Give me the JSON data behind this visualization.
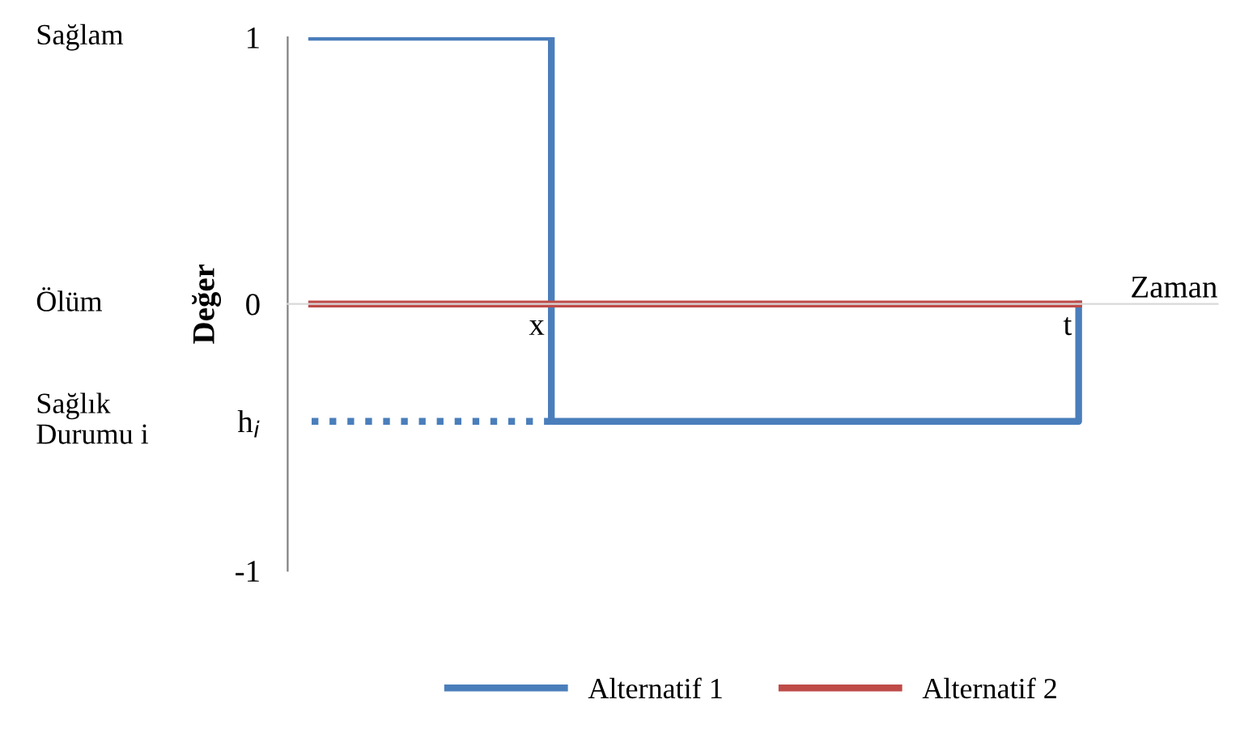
{
  "chart_data": {
    "type": "step",
    "ylabel": "Değer",
    "xlabel": "Zaman",
    "ylim": [
      -1,
      1
    ],
    "categories": [
      null,
      null,
      null,
      null,
      null,
      "x",
      null,
      null,
      null,
      null,
      null,
      null,
      null,
      null,
      null,
      null,
      "t"
    ],
    "yticks": [
      {
        "value": 1,
        "label": "1"
      },
      {
        "value": 0,
        "label": "0"
      },
      {
        "value": -0.44,
        "label": "h$_{i}$"
      },
      {
        "value": -1,
        "label": "-1"
      }
    ],
    "grid": false,
    "legend": "bottom",
    "marker": "none",
    "series": [
      {
        "name": "Alternatif 1",
        "color": "#4a7ebb",
        "values": [
          1,
          1,
          1,
          1,
          1,
          -0.44,
          -0.44,
          -0.44,
          -0.44,
          -0.44,
          -0.44,
          -0.44,
          -0.44,
          -0.44,
          -0.44,
          -0.44,
          0
        ],
        "line_style": "solid"
      },
      {
        "color": "#4a7ebb",
        "values": [
          -0.44,
          -0.44,
          -0.44,
          -0.44,
          -0.44,
          -0.44,
          null,
          null,
          null,
          null,
          null,
          null,
          null,
          null,
          null,
          null,
          null
        ],
        "line_style": "dotted",
        "type": "line"
      },
      {
        "name": "Alternatif 2",
        "color": "#be4b48",
        "values": [
          0,
          0,
          0,
          0,
          0,
          0,
          0,
          0,
          0,
          0,
          0,
          0,
          0,
          0,
          0,
          0,
          0
        ],
        "line_style": "solid",
        "type": "line"
      }
    ],
    "annotations": [
      "Sağlam",
      "Ölüm",
      "Sağlık\nDurumu i"
    ]
  }
}
